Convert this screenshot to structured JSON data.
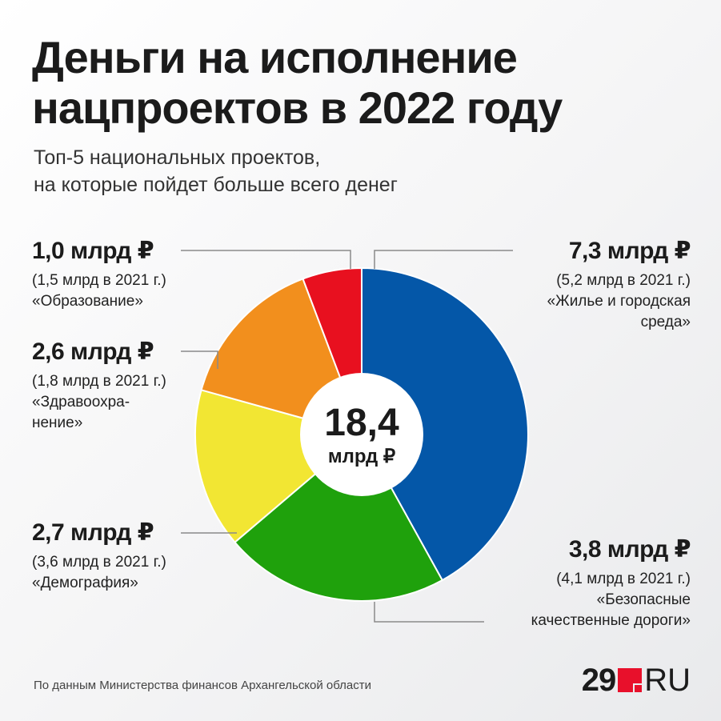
{
  "title": "Деньги на исполнение\nнацпроектов в 2022 году",
  "subtitle": "Топ-5 национальных проектов,\nна которые пойдет больше всего денег",
  "chart_data": {
    "type": "pie",
    "center_value": "18,4",
    "center_unit": "млрд ₽",
    "total": 18.4,
    "slices": [
      {
        "amount_label": "7,3 млрд ₽",
        "value": 7.3,
        "prev_label": "(5,2 млрд в 2021 г.)",
        "prev_value": 5.2,
        "name": "«Жилье и городская\nсреда»",
        "color": "#0457a8"
      },
      {
        "amount_label": "3,8 млрд ₽",
        "value": 3.8,
        "prev_label": "(4,1 млрд в 2021 г.)",
        "prev_value": 4.1,
        "name": "«Безопасные\nкачественные дороги»",
        "color": "#1fa10c"
      },
      {
        "amount_label": "2,7 млрд ₽",
        "value": 2.7,
        "prev_label": "(3,6 млрд в 2021 г.)",
        "prev_value": 3.6,
        "name": "«Демография»",
        "color": "#f2e633"
      },
      {
        "amount_label": "2,6 млрд ₽",
        "value": 2.6,
        "prev_label": "(1,8 млрд в 2021 г.)",
        "prev_value": 1.8,
        "name": "«Здравоохра-\nнение»",
        "color": "#f28f1d"
      },
      {
        "amount_label": "1,0 млрд ₽",
        "value": 1.0,
        "prev_label": "(1,5 млрд в 2021 г.)",
        "prev_value": 1.5,
        "name": "«Образование»",
        "color": "#e8101f"
      }
    ]
  },
  "source": "По данным Министерства финансов Архангельской области",
  "logo": {
    "number": "29",
    "suffix": "RU",
    "mark_color": "#e8102b"
  }
}
